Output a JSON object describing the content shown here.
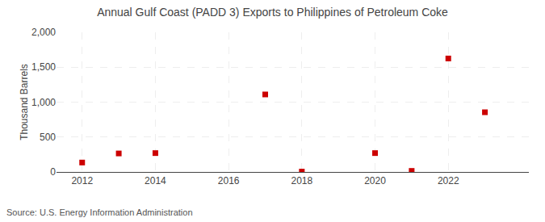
{
  "chart_data": {
    "type": "scatter",
    "title": "Annual Gulf Coast (PADD 3) Exports to Philippines of Petroleum Coke",
    "ylabel": "Thousand Barrels",
    "source": "Source: U.S. Energy Information Administration",
    "x": [
      2012,
      2013,
      2014,
      2017,
      2018,
      2020,
      2021,
      2022,
      2023
    ],
    "values": [
      135,
      265,
      270,
      1110,
      5,
      270,
      15,
      1625,
      855
    ],
    "color": "#cc0000",
    "marker": "square",
    "xlim": [
      2011.3,
      2024.2
    ],
    "xticks": [
      2012,
      2014,
      2016,
      2018,
      2020,
      2022
    ],
    "ylim": [
      0,
      2000
    ],
    "yticks": [
      0,
      500,
      {
        "value": 1000,
        "label": "1,000"
      },
      {
        "value": 1500,
        "label": "1,500"
      },
      {
        "value": 2000,
        "label": "2,000"
      }
    ],
    "grid": true
  }
}
